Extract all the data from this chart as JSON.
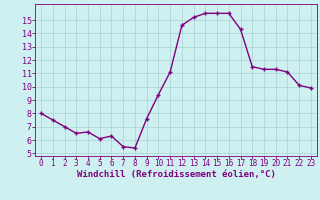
{
  "x": [
    0,
    1,
    2,
    3,
    4,
    5,
    6,
    7,
    8,
    9,
    10,
    11,
    12,
    13,
    14,
    15,
    16,
    17,
    18,
    19,
    20,
    21,
    22,
    23
  ],
  "y": [
    8.0,
    7.5,
    7.0,
    6.5,
    6.6,
    6.1,
    6.3,
    5.5,
    5.4,
    7.6,
    9.4,
    11.1,
    14.6,
    15.2,
    15.5,
    15.5,
    15.5,
    14.3,
    11.5,
    11.3,
    11.3,
    11.1,
    10.1,
    9.9
  ],
  "line_color": "#800080",
  "marker": "+",
  "markersize": 3,
  "linewidth": 1.0,
  "bg_color": "#cef0f0",
  "grid_color": "#b0d8d8",
  "xlabel": "Windchill (Refroidissement éolien,°C)",
  "xlabel_fontsize": 6.5,
  "tick_color": "#800080",
  "label_color": "#800080",
  "xlim": [
    -0.5,
    23.5
  ],
  "ylim": [
    4.8,
    16.2
  ],
  "yticks": [
    5,
    6,
    7,
    8,
    9,
    10,
    11,
    12,
    13,
    14,
    15
  ],
  "xticks": [
    0,
    1,
    2,
    3,
    4,
    5,
    6,
    7,
    8,
    9,
    10,
    11,
    12,
    13,
    14,
    15,
    16,
    17,
    18,
    19,
    20,
    21,
    22,
    23
  ],
  "tick_fontsize": 5.5,
  "ytick_fontsize": 6.0
}
